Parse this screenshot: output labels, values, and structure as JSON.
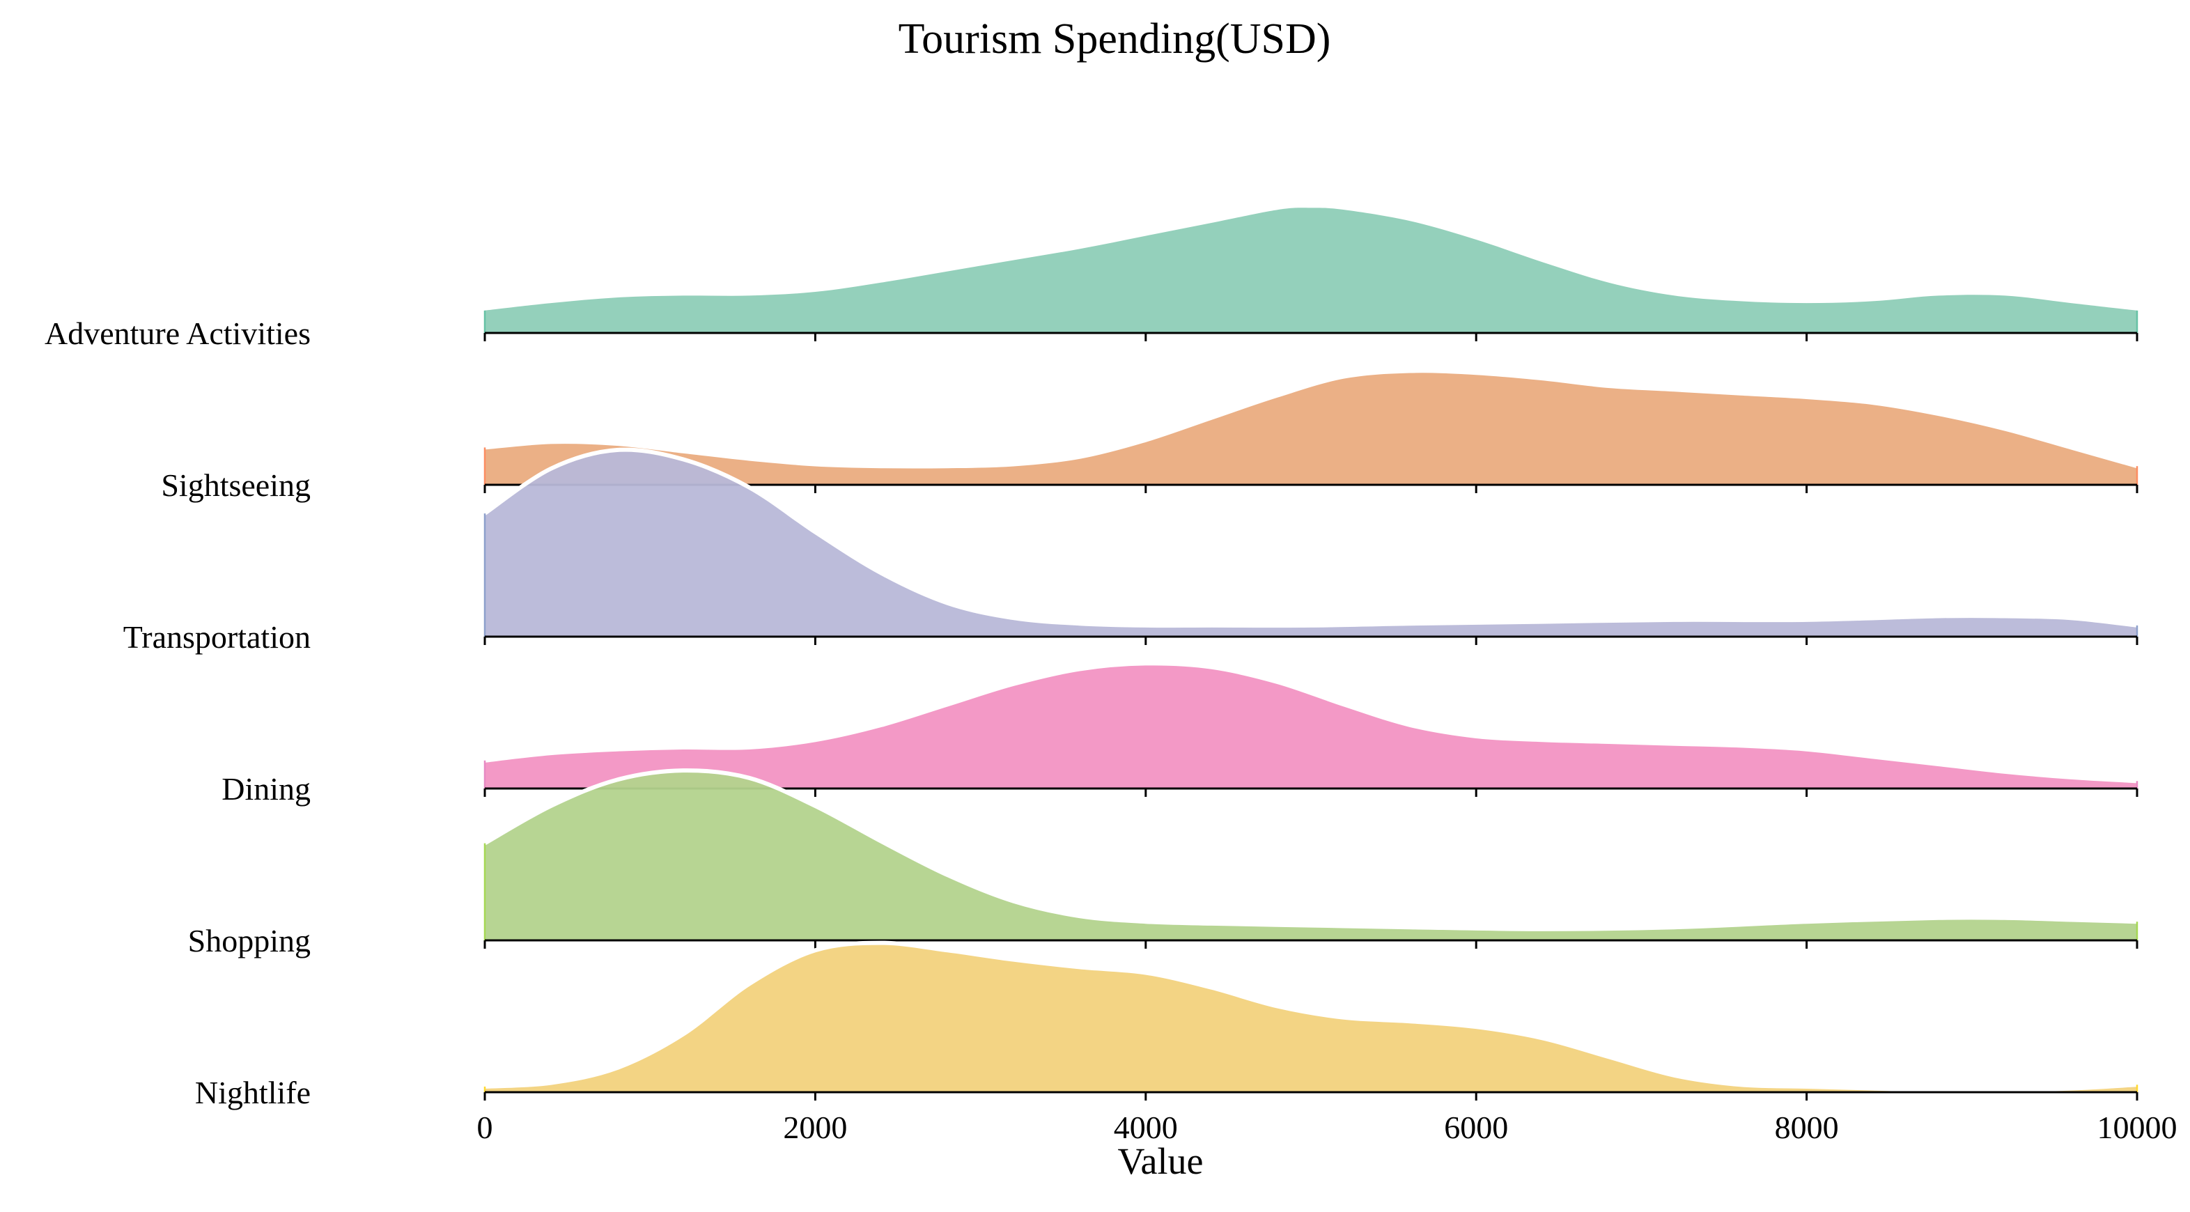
{
  "chart_data": {
    "type": "ridgeline",
    "title": "Tourism Spending(USD)",
    "xlabel": "Value",
    "ylabel": "",
    "xlim": [
      0,
      10000
    ],
    "x_ticks": [
      0,
      2000,
      4000,
      6000,
      8000,
      10000
    ],
    "x_tick_labels": [
      "0",
      "2000",
      "4000",
      "6000",
      "8000",
      "10000"
    ],
    "grid": false,
    "legend": "none",
    "density_units": "relative density (tallest peak = 1.0)",
    "series": [
      {
        "name": "Adventure Activities",
        "color": "#8ecdb7",
        "edge": "#66c2a5",
        "white_outline": false,
        "x": [
          0,
          400,
          800,
          1200,
          1600,
          2000,
          2400,
          2800,
          3200,
          3600,
          4000,
          4400,
          4800,
          5000,
          5200,
          5600,
          6000,
          6400,
          6800,
          7200,
          7600,
          8000,
          8400,
          8800,
          9200,
          9600,
          10000
        ],
        "density": [
          0.12,
          0.16,
          0.19,
          0.2,
          0.2,
          0.22,
          0.27,
          0.33,
          0.39,
          0.45,
          0.52,
          0.59,
          0.66,
          0.67,
          0.66,
          0.6,
          0.5,
          0.38,
          0.27,
          0.2,
          0.17,
          0.16,
          0.17,
          0.2,
          0.2,
          0.16,
          0.12
        ]
      },
      {
        "name": "Sightseeing",
        "color": "#eaac80",
        "edge": "#fc8d62",
        "white_outline": true,
        "x": [
          0,
          400,
          800,
          1200,
          1600,
          2000,
          2400,
          2800,
          3200,
          3600,
          4000,
          4400,
          4800,
          5200,
          5600,
          6000,
          6400,
          6800,
          7200,
          7600,
          8000,
          8400,
          8800,
          9200,
          9600,
          10000
        ],
        "density": [
          0.2,
          0.23,
          0.22,
          0.18,
          0.14,
          0.11,
          0.1,
          0.1,
          0.11,
          0.15,
          0.24,
          0.36,
          0.48,
          0.58,
          0.61,
          0.6,
          0.57,
          0.53,
          0.51,
          0.49,
          0.47,
          0.44,
          0.38,
          0.3,
          0.2,
          0.1
        ]
      },
      {
        "name": "Transportation",
        "color": "#b8b8d8",
        "edge": "#8da0cb",
        "white_outline": true,
        "x": [
          0,
          400,
          800,
          1200,
          1600,
          2000,
          2400,
          2800,
          3200,
          3600,
          4000,
          4400,
          5000,
          5600,
          6400,
          7200,
          8000,
          8800,
          9200,
          9600,
          10000
        ],
        "density": [
          0.66,
          0.9,
          1.0,
          0.95,
          0.8,
          0.56,
          0.34,
          0.18,
          0.1,
          0.07,
          0.06,
          0.06,
          0.06,
          0.07,
          0.08,
          0.09,
          0.09,
          0.11,
          0.11,
          0.1,
          0.06
        ]
      },
      {
        "name": "Dining",
        "color": "#f293c3",
        "edge": "#e78ac3",
        "white_outline": true,
        "x": [
          0,
          400,
          800,
          1200,
          1600,
          2000,
          2400,
          2800,
          3200,
          3600,
          4000,
          4400,
          4800,
          5200,
          5600,
          6000,
          6400,
          6800,
          7200,
          7600,
          8000,
          8400,
          8800,
          9200,
          9600,
          10000
        ],
        "density": [
          0.15,
          0.19,
          0.21,
          0.22,
          0.22,
          0.26,
          0.34,
          0.45,
          0.56,
          0.64,
          0.67,
          0.65,
          0.57,
          0.45,
          0.34,
          0.28,
          0.26,
          0.25,
          0.24,
          0.23,
          0.21,
          0.17,
          0.13,
          0.09,
          0.06,
          0.04
        ]
      },
      {
        "name": "Shopping",
        "color": "#b3d38d",
        "edge": "#a6d854",
        "white_outline": true,
        "x": [
          0,
          400,
          800,
          1200,
          1600,
          2000,
          2400,
          2800,
          3200,
          3600,
          4000,
          4400,
          5000,
          5600,
          6400,
          7200,
          8000,
          8800,
          9200,
          9600,
          10000
        ],
        "density": [
          0.52,
          0.72,
          0.86,
          0.91,
          0.87,
          0.72,
          0.53,
          0.35,
          0.21,
          0.13,
          0.1,
          0.09,
          0.08,
          0.07,
          0.06,
          0.07,
          0.1,
          0.12,
          0.12,
          0.11,
          0.1
        ]
      },
      {
        "name": "Nightlife",
        "color": "#f2d27d",
        "edge": "#ffd92f",
        "white_outline": true,
        "x": [
          0,
          400,
          800,
          1200,
          1600,
          2000,
          2400,
          2800,
          3200,
          3600,
          4000,
          4400,
          4800,
          5200,
          5600,
          6000,
          6400,
          6800,
          7200,
          7600,
          8000,
          8400,
          8800,
          9200,
          9600,
          10000
        ],
        "density": [
          0.03,
          0.05,
          0.13,
          0.31,
          0.58,
          0.76,
          0.8,
          0.76,
          0.71,
          0.67,
          0.64,
          0.56,
          0.46,
          0.4,
          0.38,
          0.35,
          0.29,
          0.19,
          0.09,
          0.04,
          0.03,
          0.02,
          0.01,
          0.01,
          0.02,
          0.04
        ]
      }
    ]
  }
}
